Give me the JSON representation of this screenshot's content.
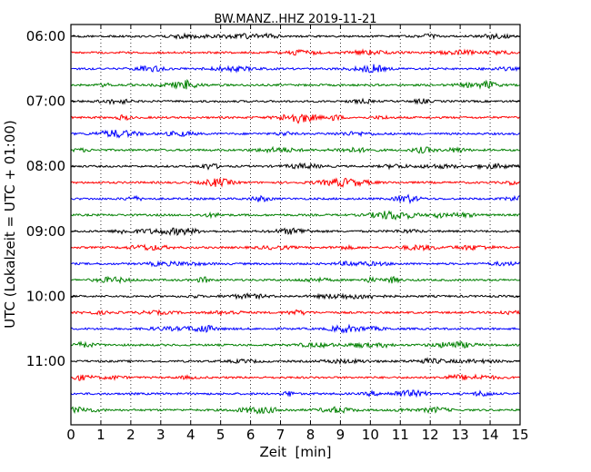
{
  "chart_data": {
    "type": "line",
    "title": "BW.MANZ..HHZ 2019-11-21",
    "xlabel": "Zeit  [min]",
    "ylabel": "UTC (Lokalzeit = UTC + 01:00)",
    "xlim": [
      0,
      15
    ],
    "x_ticks": [
      0,
      1,
      2,
      3,
      4,
      5,
      6,
      7,
      8,
      9,
      10,
      11,
      12,
      13,
      14,
      15
    ],
    "x_tick_labels": [
      "0",
      "1",
      "2",
      "3",
      "4",
      "5",
      "6",
      "7",
      "8",
      "9",
      "10",
      "11",
      "12",
      "13",
      "14",
      "15"
    ],
    "y_tick_labels": [
      "06:00",
      "07:00",
      "08:00",
      "09:00",
      "10:00",
      "11:00"
    ],
    "grid": "vertical dotted at each minute",
    "trace_colors": [
      "#000000",
      "#ff0000",
      "#0000ff",
      "#008000"
    ],
    "traces_per_hour": 4,
    "trace_start_times": [
      "06:00",
      "06:15",
      "06:30",
      "06:45",
      "07:00",
      "07:15",
      "07:30",
      "07:45",
      "08:00",
      "08:15",
      "08:30",
      "08:45",
      "09:00",
      "09:15",
      "09:30",
      "09:45",
      "10:00",
      "10:15",
      "10:30",
      "10:45",
      "11:00",
      "11:15",
      "11:30",
      "11:45"
    ]
  }
}
